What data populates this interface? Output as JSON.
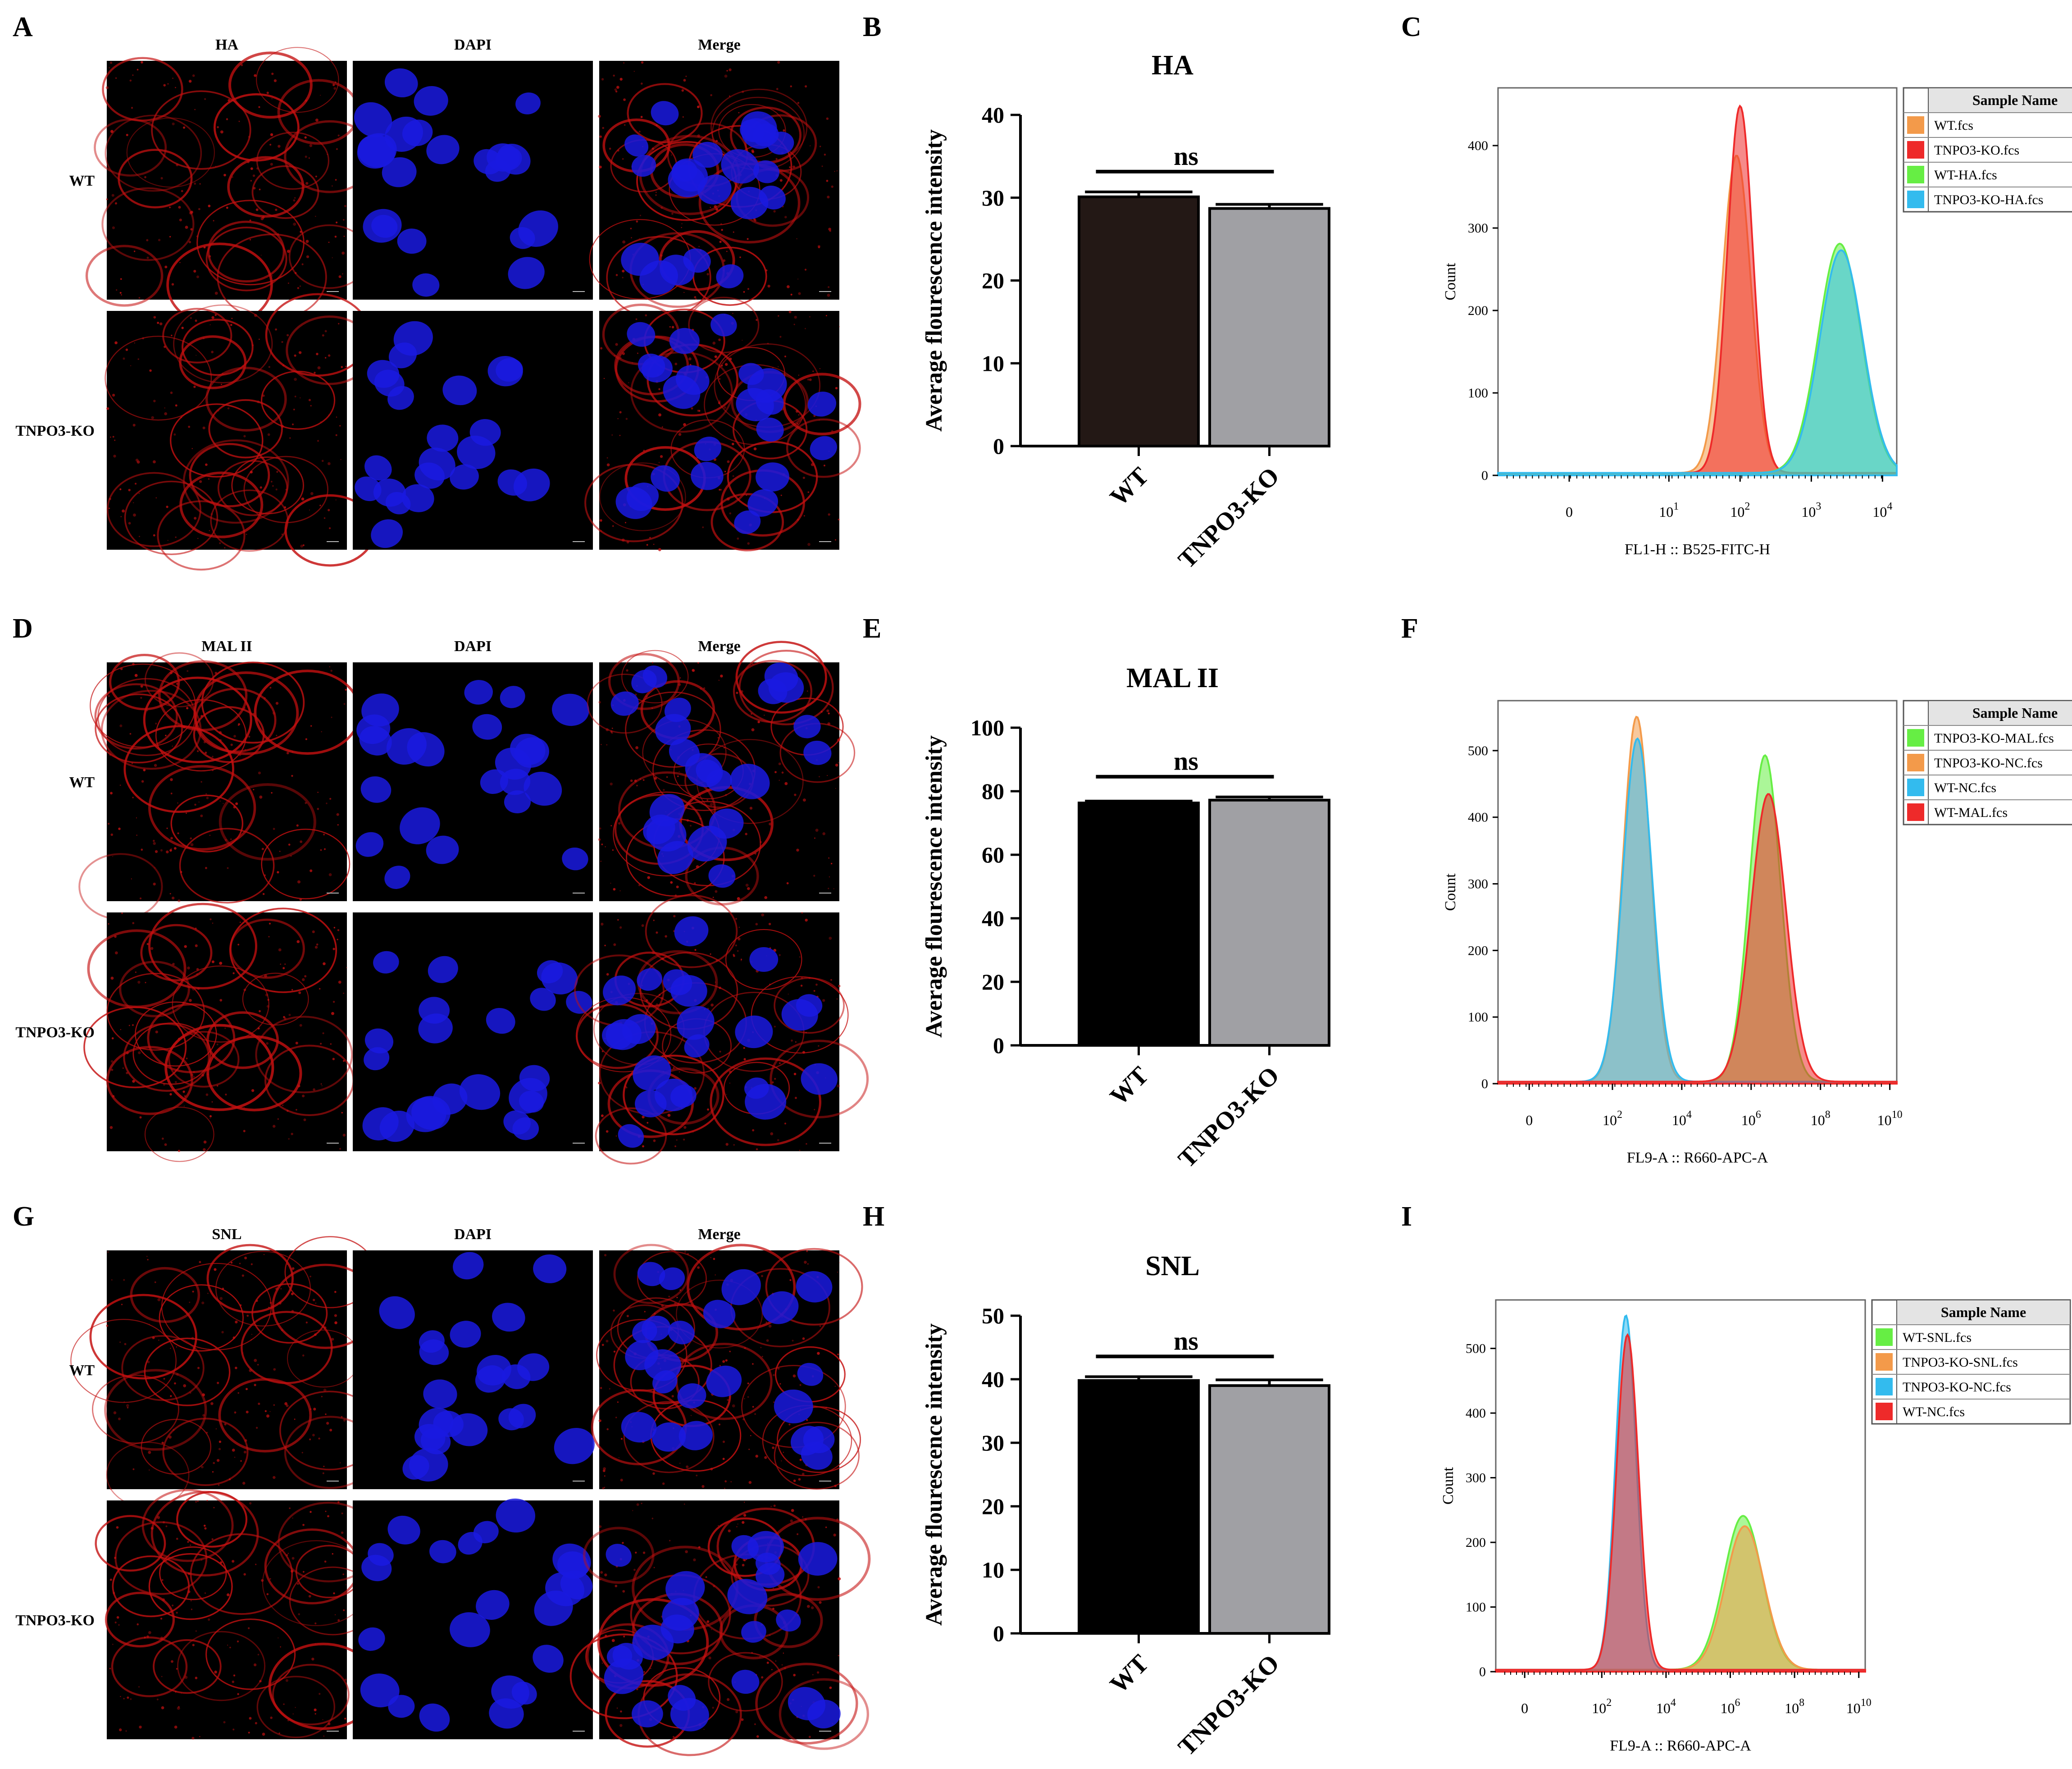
{
  "row_labels": [
    "WT",
    "TNPO3-KO"
  ],
  "micro_columns": [
    [
      "HA",
      "DAPI",
      "Merge"
    ],
    [
      "MAL II",
      "DAPI",
      "Merge"
    ],
    [
      "SNL",
      "DAPI",
      "Merge"
    ]
  ],
  "panel_letters": {
    "rows": [
      [
        "A",
        "B",
        "C"
      ],
      [
        "D",
        "E",
        "F"
      ],
      [
        "G",
        "H",
        "I"
      ]
    ]
  },
  "colors": {
    "stain_red": "#c41010",
    "nucleus_blue": "#1a1ae0",
    "bar_wt_b": "#231815",
    "bar_wt": "#000000",
    "bar_ko": "#a0a0a4",
    "flow_orange": "#f39a4a",
    "flow_red": "#ee2a2a",
    "flow_green": "#66ee44",
    "flow_cyan": "#33bbee"
  },
  "chart_data": [
    {
      "panel": "B",
      "type": "bar",
      "title": "HA",
      "categories": [
        "WT",
        "TNPO3-KO"
      ],
      "values": [
        30.1,
        28.7
      ],
      "errors": [
        0.6,
        0.5
      ],
      "ylabel": "Average flourescence intensity",
      "ylim": [
        0,
        40
      ],
      "yticks": [
        0,
        10,
        20,
        30,
        40
      ],
      "annotation": "ns"
    },
    {
      "panel": "E",
      "type": "bar",
      "title": "MAL II",
      "categories": [
        "WT",
        "TNPO3-KO"
      ],
      "values": [
        76.3,
        77.2
      ],
      "errors": [
        0.6,
        1.0
      ],
      "ylabel": "Average flourescence intensity",
      "ylim": [
        0,
        100
      ],
      "yticks": [
        0,
        20,
        40,
        60,
        80,
        100
      ],
      "annotation": "ns"
    },
    {
      "panel": "H",
      "type": "bar",
      "title": "SNL",
      "categories": [
        "WT",
        "TNPO3-KO"
      ],
      "values": [
        39.8,
        39.0
      ],
      "errors": [
        0.6,
        0.9
      ],
      "ylabel": "Average flourescence intensity",
      "ylim": [
        0,
        50
      ],
      "yticks": [
        0,
        10,
        20,
        30,
        40,
        50
      ],
      "annotation": "ns"
    },
    {
      "panel": "C",
      "type": "area",
      "xlabel": "FL1-H :: B525-FITC-H",
      "ylabel": "Count",
      "yticks": [
        0,
        100,
        200,
        300,
        400
      ],
      "ylim": [
        0,
        470
      ],
      "xtick_labels": [
        {
          "base": "0",
          "exp": ""
        },
        {
          "base": "10",
          "exp": "1"
        },
        {
          "base": "10",
          "exp": "2"
        },
        {
          "base": "10",
          "exp": "3"
        },
        {
          "base": "10",
          "exp": "4"
        }
      ],
      "legend_title": "Sample Name",
      "series": [
        {
          "name": "WT.fcs",
          "peak_decade": 1.95,
          "peak_count": 385,
          "width": 0.2
        },
        {
          "name": "TNPO3-KO.fcs",
          "peak_decade": 2.0,
          "peak_count": 445,
          "width": 0.18
        },
        {
          "name": "WT-HA.fcs",
          "peak_decade": 3.4,
          "peak_count": 278,
          "width": 0.3
        },
        {
          "name": "TNPO3-KO-HA.fcs",
          "peak_decade": 3.42,
          "peak_count": 270,
          "width": 0.3
        }
      ]
    },
    {
      "panel": "F",
      "type": "area",
      "xlabel": "FL9-A :: R660-APC-A",
      "ylabel": "Count",
      "yticks": [
        0,
        100,
        200,
        300,
        400,
        500
      ],
      "ylim": [
        0,
        575
      ],
      "xtick_labels": [
        {
          "base": "0",
          "exp": ""
        },
        {
          "base": "10",
          "exp": "2"
        },
        {
          "base": "10",
          "exp": "4"
        },
        {
          "base": "10",
          "exp": "6"
        },
        {
          "base": "10",
          "exp": "8"
        },
        {
          "base": "10",
          "exp": "10"
        }
      ],
      "legend_title": "Sample Name",
      "series": [
        {
          "name": "TNPO3-KO-MAL.fcs",
          "peak_decade": 6.4,
          "peak_count": 490,
          "width": 0.45
        },
        {
          "name": "TNPO3-KO-NC.fcs",
          "peak_decade": 2.7,
          "peak_count": 548,
          "width": 0.4
        },
        {
          "name": "WT-NC.fcs",
          "peak_decade": 2.72,
          "peak_count": 515,
          "width": 0.42
        },
        {
          "name": "WT-MAL.fcs",
          "peak_decade": 6.5,
          "peak_count": 432,
          "width": 0.5
        }
      ]
    },
    {
      "panel": "I",
      "type": "area",
      "xlabel": "FL9-A :: R660-APC-A",
      "ylabel": "Count",
      "yticks": [
        0,
        100,
        200,
        300,
        400,
        500
      ],
      "ylim": [
        0,
        575
      ],
      "xtick_labels": [
        {
          "base": "0",
          "exp": ""
        },
        {
          "base": "10",
          "exp": "2"
        },
        {
          "base": "10",
          "exp": "4"
        },
        {
          "base": "10",
          "exp": "6"
        },
        {
          "base": "10",
          "exp": "8"
        },
        {
          "base": "10",
          "exp": "10"
        }
      ],
      "legend_title": "Sample Name",
      "series": [
        {
          "name": "WT-SNL.fcs",
          "peak_decade": 6.4,
          "peak_count": 238,
          "width": 0.6
        },
        {
          "name": "TNPO3-KO-SNL.fcs",
          "peak_decade": 6.45,
          "peak_count": 222,
          "width": 0.6
        },
        {
          "name": "TNPO3-KO-NC.fcs",
          "peak_decade": 2.75,
          "peak_count": 548,
          "width": 0.32
        },
        {
          "name": "WT-NC.fcs",
          "peak_decade": 2.8,
          "peak_count": 518,
          "width": 0.34
        }
      ]
    }
  ]
}
